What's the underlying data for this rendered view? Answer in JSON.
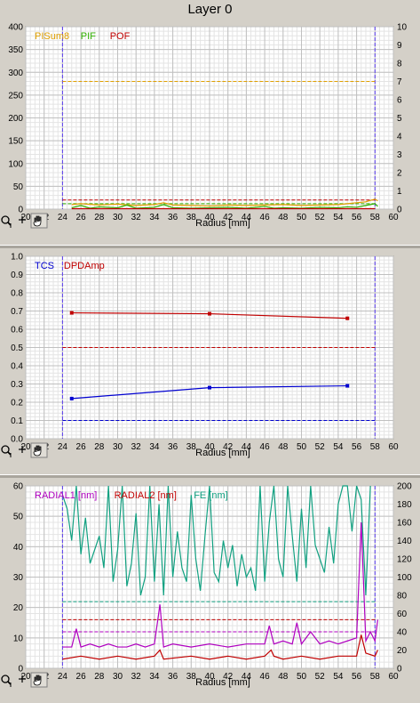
{
  "title": "Layer 0",
  "toolbar": {
    "zoom_icon": "magnifier-icon",
    "crosshair_icon": "crosshair-icon",
    "pan_icon": "hand-icon"
  },
  "chart_data": [
    {
      "type": "line",
      "xlabel": "Radius [mm]",
      "xlim": [
        20,
        60
      ],
      "ylim": [
        0,
        400
      ],
      "y2lim": [
        0,
        10
      ],
      "xticks": [
        "20",
        "22",
        "24",
        "26",
        "28",
        "30",
        "32",
        "34",
        "36",
        "38",
        "40",
        "42",
        "44",
        "46",
        "48",
        "50",
        "52",
        "54",
        "56",
        "58",
        "60"
      ],
      "yticks": [
        "0",
        "50",
        "100",
        "150",
        "200",
        "250",
        "300",
        "350",
        "400"
      ],
      "y2ticks": [
        "0",
        "1",
        "2",
        "3",
        "4",
        "5",
        "6",
        "7",
        "8",
        "9",
        "10"
      ],
      "legend": [
        "PISum8",
        "PIF",
        "POF"
      ],
      "colors": {
        "PISum8": "#e0a000",
        "PIF": "#30b000",
        "POF": "#c00000",
        "limit": "#5a3cf0"
      },
      "vlines": [
        24,
        58
      ],
      "series": [
        {
          "name": "PISum8",
          "axis": "left",
          "x": [
            25,
            26,
            28,
            30,
            32,
            34,
            35,
            36,
            38,
            40,
            42,
            44,
            46,
            48,
            50,
            52,
            54,
            55,
            56,
            57,
            58,
            58.3
          ],
          "y": [
            10,
            12,
            9,
            11,
            8,
            10,
            14,
            9,
            8,
            7,
            9,
            8,
            9,
            10,
            8,
            9,
            10,
            12,
            14,
            16,
            22,
            18
          ]
        },
        {
          "name": "PIF",
          "axis": "left",
          "x": [
            25,
            26,
            27,
            28,
            30,
            31,
            32,
            34,
            35,
            36,
            38,
            40,
            42,
            44,
            46,
            47,
            48,
            50,
            52,
            54,
            55,
            56,
            57,
            58,
            58.3
          ],
          "y": [
            3,
            8,
            2,
            5,
            3,
            9,
            2,
            4,
            10,
            3,
            2,
            3,
            4,
            2,
            6,
            2,
            3,
            2,
            4,
            3,
            5,
            4,
            8,
            12,
            6
          ]
        },
        {
          "name": "POF",
          "axis": "left",
          "x": [
            25,
            30,
            35,
            40,
            45,
            50,
            55,
            58
          ],
          "y": [
            1,
            1,
            1,
            1,
            1,
            1,
            1,
            1
          ]
        }
      ],
      "limits": [
        {
          "axis": "left",
          "y": 280,
          "color": "#e0a000"
        },
        {
          "axis": "left",
          "y": 20,
          "color": "#c00000"
        },
        {
          "axis": "left",
          "y": 12,
          "color": "#30b000"
        }
      ]
    },
    {
      "type": "line",
      "xlabel": "Radius [mm]",
      "xlim": [
        20,
        60
      ],
      "ylim": [
        0,
        1
      ],
      "xticks": [
        "20",
        "22",
        "24",
        "26",
        "28",
        "30",
        "32",
        "34",
        "36",
        "38",
        "40",
        "42",
        "44",
        "46",
        "48",
        "50",
        "52",
        "54",
        "56",
        "58",
        "60"
      ],
      "yticks": [
        "0.0",
        "0.1",
        "0.2",
        "0.3",
        "0.4",
        "0.5",
        "0.6",
        "0.7",
        "0.8",
        "0.9",
        "1.0"
      ],
      "legend": [
        "TCS",
        "DPDAmp"
      ],
      "colors": {
        "TCS": "#0000d0",
        "DPDAmp": "#c00000",
        "limit": "#5a3cf0"
      },
      "vlines": [
        24,
        58
      ],
      "series": [
        {
          "name": "TCS",
          "axis": "left",
          "x": [
            25,
            40,
            55
          ],
          "y": [
            0.22,
            0.28,
            0.29
          ]
        },
        {
          "name": "DPDAmp",
          "axis": "left",
          "x": [
            25,
            40,
            55
          ],
          "y": [
            0.69,
            0.685,
            0.66
          ]
        }
      ],
      "limits": [
        {
          "axis": "left",
          "y": 0.5,
          "color": "#c00000"
        },
        {
          "axis": "left",
          "y": 0.1,
          "color": "#0000d0"
        }
      ]
    },
    {
      "type": "line",
      "xlabel": "Radius [mm]",
      "xlim": [
        20,
        60
      ],
      "ylim": [
        0,
        60
      ],
      "y2lim": [
        0,
        200
      ],
      "xticks": [
        "20",
        "22",
        "24",
        "26",
        "28",
        "30",
        "32",
        "34",
        "36",
        "38",
        "40",
        "42",
        "44",
        "46",
        "48",
        "50",
        "52",
        "54",
        "56",
        "58",
        "60"
      ],
      "yticks": [
        "0",
        "10",
        "20",
        "30",
        "40",
        "50",
        "60"
      ],
      "y2ticks": [
        "0",
        "20",
        "40",
        "60",
        "80",
        "100",
        "120",
        "140",
        "160",
        "180",
        "200"
      ],
      "legend": [
        "RADIAL1 [nm]",
        "RADIAL2 [nm]",
        "FE [nm]"
      ],
      "colors": {
        "RADIAL1 [nm]": "#b000c0",
        "RADIAL2 [nm]": "#c00000",
        "FE [nm]": "#10a080",
        "limit": "#5a3cf0"
      },
      "vlines": [
        24,
        58
      ],
      "series": [
        {
          "name": "RADIAL1 [nm]",
          "axis": "left",
          "x": [
            24,
            25,
            25.5,
            26,
            27,
            28,
            29,
            30,
            31,
            32,
            33,
            34,
            34.6,
            35,
            36,
            38,
            40,
            42,
            44,
            46,
            46.5,
            47,
            48,
            49,
            49.5,
            50,
            51,
            52,
            53,
            54,
            55,
            56,
            56.5,
            57,
            57.5,
            58,
            58.3
          ],
          "y": [
            7,
            7,
            13,
            7,
            8,
            7,
            8,
            7,
            7,
            8,
            7,
            8,
            21,
            7,
            8,
            7,
            8,
            7,
            8,
            8,
            14,
            8,
            9,
            8,
            15,
            8,
            12,
            8,
            9,
            8,
            9,
            10,
            48,
            9,
            12,
            9,
            16
          ]
        },
        {
          "name": "RADIAL2 [nm]",
          "axis": "left",
          "x": [
            24,
            26,
            28,
            30,
            32,
            34,
            34.6,
            35,
            38,
            40,
            42,
            44,
            46,
            46.7,
            47,
            48,
            50,
            52,
            54,
            56,
            56.5,
            57,
            58,
            58.3
          ],
          "y": [
            3,
            4,
            3,
            4,
            3,
            4,
            6,
            3,
            4,
            3,
            4,
            3,
            4,
            6,
            4,
            3,
            4,
            3,
            4,
            4,
            11,
            5,
            4,
            6
          ]
        },
        {
          "name": "FE [nm]",
          "axis": "right",
          "x": [
            24,
            24.5,
            25,
            25.5,
            26,
            26.5,
            27,
            27.5,
            28,
            28.5,
            29,
            29.5,
            30,
            30.5,
            31,
            31.5,
            32,
            32.5,
            33,
            33.5,
            34,
            34.5,
            35,
            35.5,
            36,
            36.5,
            37,
            37.5,
            38,
            38.5,
            39,
            39.5,
            40,
            40.5,
            41,
            41.5,
            42,
            42.5,
            43,
            43.5,
            44,
            44.5,
            45,
            45.5,
            46,
            46.5,
            47,
            47.5,
            48,
            48.5,
            49,
            49.5,
            50,
            50.5,
            51,
            51.5,
            52,
            52.5,
            53,
            53.5,
            54,
            54.5,
            55,
            55.5,
            56,
            56.5,
            57,
            57.5
          ],
          "y": [
            190,
            175,
            140,
            200,
            125,
            165,
            115,
            130,
            145,
            110,
            200,
            95,
            130,
            200,
            90,
            115,
            170,
            80,
            100,
            200,
            95,
            180,
            80,
            200,
            100,
            150,
            110,
            95,
            190,
            120,
            85,
            145,
            200,
            105,
            95,
            140,
            110,
            135,
            90,
            125,
            100,
            110,
            85,
            200,
            95,
            160,
            200,
            120,
            100,
            200,
            145,
            95,
            175,
            110,
            200,
            135,
            120,
            105,
            155,
            115,
            180,
            200,
            200,
            150,
            200,
            185,
            80,
            200
          ]
        }
      ],
      "limits": [
        {
          "axis": "right",
          "y": 73,
          "color": "#10a080"
        },
        {
          "axis": "left",
          "y": 16,
          "color": "#c00000"
        },
        {
          "axis": "left",
          "y": 12,
          "color": "#b000c0"
        }
      ]
    }
  ]
}
